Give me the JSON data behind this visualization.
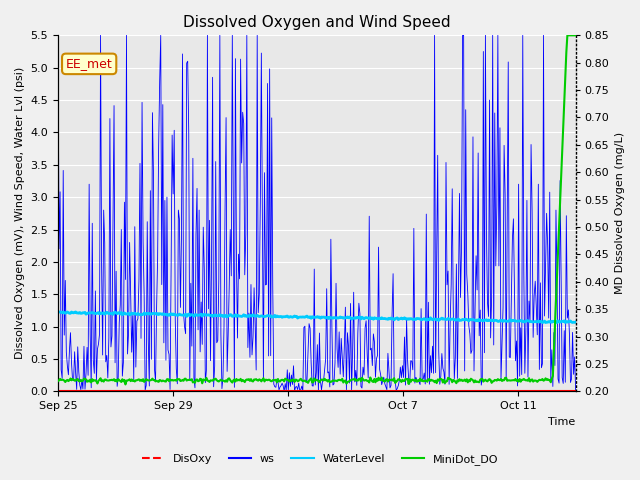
{
  "title": "Dissolved Oxygen and Wind Speed",
  "ylabel_left": "Dissolved Oxygen (mV), Wind Speed, Water Lvl (psi)",
  "ylabel_right": "MD Dissolved Oxygen (mg/L)",
  "xlabel": "Time",
  "ylim_left": [
    0.0,
    5.5
  ],
  "ylim_right": [
    0.2,
    0.85
  ],
  "yticks_left": [
    0.0,
    0.5,
    1.0,
    1.5,
    2.0,
    2.5,
    3.0,
    3.5,
    4.0,
    4.5,
    5.0,
    5.5
  ],
  "yticks_right": [
    0.2,
    0.25,
    0.3,
    0.35,
    0.4,
    0.45,
    0.5,
    0.55,
    0.6,
    0.65,
    0.7,
    0.75,
    0.8,
    0.85
  ],
  "xtick_labels": [
    "Sep 25",
    "Sep 29",
    "Oct 3",
    "Oct 7",
    "Oct 11"
  ],
  "xtick_positions": [
    0,
    4,
    8,
    12,
    16
  ],
  "xlim": [
    0,
    18
  ],
  "legend_labels": [
    "DisOxy",
    "ws",
    "WaterLevel",
    "MiniDot_DO"
  ],
  "legend_colors": [
    "#ff0000",
    "#0000ff",
    "#00ccff",
    "#00cc00"
  ],
  "annotation_text": "EE_met",
  "annotation_color": "#cc0000",
  "annotation_bg": "#ffffcc",
  "annotation_edge": "#cc8800",
  "plot_bg_color": "#e8e8e8",
  "fig_bg_color": "#f0f0f0",
  "grid_color": "#ffffff",
  "ws_color": "#0000ff",
  "disoxy_color": "#ff0000",
  "waterlevel_color": "#00ccff",
  "minidot_color": "#00cc00",
  "n_days": 18,
  "ws_segments": [
    {
      "day_start": 0,
      "day_end": 0.3,
      "mean": 2.2,
      "std": 0.3,
      "base": 0.0
    },
    {
      "day_start": 0.3,
      "day_end": 1.0,
      "mean": 0.5,
      "std": 0.3,
      "base": 0.0
    },
    {
      "day_start": 1.0,
      "day_end": 3.5,
      "mean": 1.5,
      "std": 0.8,
      "base": 0.0
    },
    {
      "day_start": 3.5,
      "day_end": 7.5,
      "mean": 2.0,
      "std": 1.0,
      "base": 0.0
    },
    {
      "day_start": 7.5,
      "day_end": 8.5,
      "mean": 0.1,
      "std": 0.1,
      "base": 0.0
    },
    {
      "day_start": 8.5,
      "day_end": 13.0,
      "mean": 0.6,
      "std": 0.5,
      "base": 0.0
    },
    {
      "day_start": 13.0,
      "day_end": 16.5,
      "mean": 1.8,
      "std": 1.0,
      "base": 0.0
    },
    {
      "day_start": 16.5,
      "day_end": 17.5,
      "mean": 1.5,
      "std": 0.8,
      "base": 0.0
    },
    {
      "day_start": 17.5,
      "day_end": 18.0,
      "mean": 0.8,
      "std": 0.4,
      "base": 0.0
    }
  ],
  "ws_spikes": [
    {
      "day": 0.05,
      "val": 2.2
    },
    {
      "day": 1.1,
      "val": 3.2
    },
    {
      "day": 1.6,
      "val": 2.8
    },
    {
      "day": 1.9,
      "val": 2.6
    },
    {
      "day": 2.2,
      "val": 2.5
    },
    {
      "day": 2.5,
      "val": 2.3
    },
    {
      "day": 2.8,
      "val": 1.7
    },
    {
      "day": 3.0,
      "val": 1.5
    },
    {
      "day": 3.2,
      "val": 3.1
    },
    {
      "day": 3.5,
      "val": 3.8
    },
    {
      "day": 3.8,
      "val": 3.0
    },
    {
      "day": 4.0,
      "val": 3.05
    },
    {
      "day": 4.2,
      "val": 2.8
    },
    {
      "day": 4.5,
      "val": 5.1
    },
    {
      "day": 4.55,
      "val": 4.0
    },
    {
      "day": 4.7,
      "val": 3.6
    },
    {
      "day": 4.9,
      "val": 2.8
    },
    {
      "day": 5.5,
      "val": 3.55
    },
    {
      "day": 5.8,
      "val": 2.8
    },
    {
      "day": 6.0,
      "val": 2.5
    },
    {
      "day": 6.2,
      "val": 2.0
    },
    {
      "day": 6.5,
      "val": 1.8
    },
    {
      "day": 6.8,
      "val": 1.6
    },
    {
      "day": 7.0,
      "val": 1.5
    },
    {
      "day": 9.5,
      "val": 2.35
    },
    {
      "day": 10.0,
      "val": 1.3
    },
    {
      "day": 10.5,
      "val": 1.2
    },
    {
      "day": 14.8,
      "val": 5.25
    },
    {
      "day": 15.0,
      "val": 4.5
    },
    {
      "day": 15.2,
      "val": 4.3
    },
    {
      "day": 15.5,
      "val": 3.8
    },
    {
      "day": 16.0,
      "val": 3.2
    },
    {
      "day": 16.3,
      "val": 2.95
    },
    {
      "day": 16.5,
      "val": 2.8
    },
    {
      "day": 16.7,
      "val": 3.2
    },
    {
      "day": 17.0,
      "val": 2.75
    },
    {
      "day": 17.3,
      "val": 2.8
    }
  ],
  "water_level_start": 1.22,
  "water_level_end": 1.07,
  "minidot_flat": 0.22,
  "minidot_spike_day": 17.2,
  "minidot_spike_val": 0.85
}
